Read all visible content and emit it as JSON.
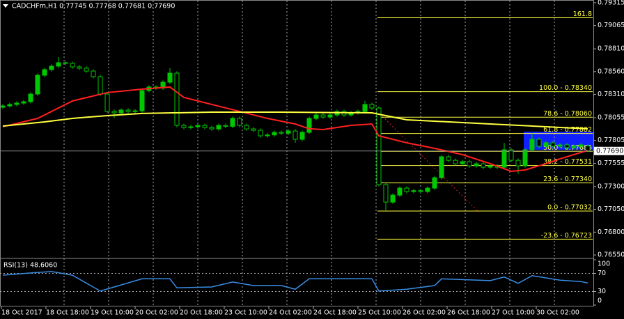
{
  "chart_data": {
    "type": "candlestick",
    "title": "CADCHFm,H1  0.77745 0.77768 0.77681 0.77690",
    "up_color": "#00c800",
    "down_color": "#00c800",
    "open": [
      0.7817,
      0.78184,
      0.782,
      0.78215,
      0.7823,
      0.78314,
      0.7852,
      0.78582,
      0.7862,
      0.78658,
      0.7865,
      0.78612,
      0.78597,
      0.78566,
      0.78505,
      0.78314,
      0.78123,
      0.78108,
      0.78138,
      0.78123,
      0.7813,
      0.78352,
      0.78391,
      0.7838,
      0.78444,
      0.78543,
      0.7797,
      0.77947,
      0.77955,
      0.7797,
      0.77947,
      0.77932,
      0.7797,
      0.7796,
      0.78047,
      0.7797,
      0.77932,
      0.77917,
      0.77856,
      0.77866,
      0.77894,
      0.77885,
      0.77909,
      0.77818,
      0.77894,
      0.78047,
      0.78085,
      0.78062,
      0.78085,
      0.78123,
      0.78085,
      0.78108,
      0.78123,
      0.782,
      0.78161,
      0.77321,
      0.7713,
      0.77206,
      0.77283,
      0.77245,
      0.77255,
      0.77245,
      0.77283,
      0.77397,
      0.77627,
      0.77588,
      0.7755,
      0.77573,
      0.77527,
      0.7755,
      0.77512,
      0.77527,
      0.77512,
      0.77703,
      0.77588,
      0.77527,
      0.77703,
      0.77818,
      0.77742,
      0.7778,
      0.77742,
      0.77757,
      0.77726,
      0.77742,
      0.77745
    ],
    "high": [
      0.78204,
      0.7822,
      0.78235,
      0.7825,
      0.78334,
      0.7854,
      0.78602,
      0.7864,
      0.7872,
      0.78678,
      0.7867,
      0.78632,
      0.78617,
      0.78586,
      0.78525,
      0.78334,
      0.78143,
      0.78158,
      0.78158,
      0.7815,
      0.78372,
      0.78411,
      0.78411,
      0.78464,
      0.786,
      0.78563,
      0.7799,
      0.77975,
      0.7799,
      0.7799,
      0.77967,
      0.7799,
      0.7799,
      0.78067,
      0.78067,
      0.7799,
      0.77952,
      0.77937,
      0.77886,
      0.77914,
      0.77914,
      0.77929,
      0.77929,
      0.77914,
      0.78067,
      0.78105,
      0.78105,
      0.78105,
      0.78143,
      0.78143,
      0.78128,
      0.78143,
      0.7824,
      0.7822,
      0.78181,
      0.77341,
      0.77226,
      0.77303,
      0.77303,
      0.77275,
      0.77275,
      0.77303,
      0.77417,
      0.77647,
      0.77647,
      0.77608,
      0.77593,
      0.77593,
      0.7757,
      0.7757,
      0.77547,
      0.77547,
      0.7778,
      0.77723,
      0.77608,
      0.77723,
      0.77882,
      0.77838,
      0.778,
      0.778,
      0.77777,
      0.77777,
      0.77762,
      0.77777,
      0.77768
    ],
    "low": [
      0.7815,
      0.78164,
      0.7818,
      0.78195,
      0.7821,
      0.78294,
      0.785,
      0.78562,
      0.786,
      0.7863,
      0.78592,
      0.78577,
      0.78546,
      0.78485,
      0.78294,
      0.78103,
      0.7805,
      0.78088,
      0.78103,
      0.78103,
      0.7811,
      0.78332,
      0.7836,
      0.7836,
      0.78424,
      0.7795,
      0.77927,
      0.77927,
      0.77935,
      0.77927,
      0.77912,
      0.77912,
      0.7794,
      0.7794,
      0.7795,
      0.77912,
      0.77897,
      0.77836,
      0.77836,
      0.77846,
      0.77865,
      0.77865,
      0.7778,
      0.77798,
      0.77874,
      0.78027,
      0.78042,
      0.78042,
      0.78065,
      0.78065,
      0.78065,
      0.78088,
      0.78103,
      0.78141,
      0.77301,
      0.77032,
      0.7711,
      0.77186,
      0.77225,
      0.77225,
      0.77225,
      0.77225,
      0.77263,
      0.77377,
      0.77568,
      0.7753,
      0.7753,
      0.77507,
      0.77507,
      0.77492,
      0.77492,
      0.77492,
      0.77492,
      0.77568,
      0.7744,
      0.77507,
      0.77683,
      0.77722,
      0.77722,
      0.77722,
      0.77722,
      0.77706,
      0.77706,
      0.77722,
      0.77681
    ],
    "close": [
      0.78184,
      0.782,
      0.78215,
      0.7823,
      0.78314,
      0.7852,
      0.78582,
      0.7862,
      0.78658,
      0.7865,
      0.78612,
      0.78597,
      0.78566,
      0.78505,
      0.78314,
      0.78123,
      0.78108,
      0.78138,
      0.78123,
      0.7813,
      0.78352,
      0.78391,
      0.7838,
      0.78444,
      0.78543,
      0.7797,
      0.77947,
      0.77955,
      0.7797,
      0.77947,
      0.77932,
      0.7797,
      0.7796,
      0.78047,
      0.7797,
      0.77932,
      0.77917,
      0.77856,
      0.77866,
      0.77894,
      0.77885,
      0.77909,
      0.77818,
      0.77894,
      0.78047,
      0.78085,
      0.78062,
      0.78085,
      0.78123,
      0.78085,
      0.78108,
      0.78123,
      0.782,
      0.78161,
      0.77321,
      0.7713,
      0.77206,
      0.77283,
      0.77245,
      0.77255,
      0.77245,
      0.77283,
      0.77397,
      0.77627,
      0.77588,
      0.7755,
      0.77573,
      0.77527,
      0.7755,
      0.77512,
      0.77527,
      0.77512,
      0.77703,
      0.77588,
      0.77527,
      0.77703,
      0.77818,
      0.77742,
      0.7778,
      0.77742,
      0.77757,
      0.77726,
      0.77742,
      0.77757,
      0.7769
    ],
    "moving_averages": [
      {
        "color": "#ff2020",
        "x": [
          0,
          5,
          10,
          15,
          20,
          24,
          26,
          30,
          34,
          38,
          42,
          44,
          46,
          50,
          53,
          54,
          58,
          62,
          66,
          70,
          73,
          75,
          78,
          80,
          84
        ],
        "values": [
          0.77956,
          0.78047,
          0.78238,
          0.7833,
          0.78368,
          0.78391,
          0.78277,
          0.782,
          0.78124,
          0.78047,
          0.77986,
          0.77933,
          0.77925,
          0.77971,
          0.77986,
          0.77856,
          0.7778,
          0.77719,
          0.7765,
          0.77551,
          0.77467,
          0.77482,
          0.77551,
          0.77604,
          0.77696
        ]
      },
      {
        "color": "#ffff40",
        "x": [
          0,
          6,
          10,
          15,
          20,
          30,
          40,
          53,
          58,
          70,
          80,
          84
        ],
        "values": [
          0.77963,
          0.78009,
          0.78047,
          0.78078,
          0.78101,
          0.78116,
          0.78116,
          0.78108,
          0.78032,
          0.77986,
          0.77948,
          0.77933
        ]
      }
    ],
    "fib_levels": [
      {
        "value": 0.7915,
        "label": "161.8"
      },
      {
        "value": 0.7834,
        "label": "100.0 - 0.78340"
      },
      {
        "value": 0.7806,
        "label": "78.6 - 0.78060"
      },
      {
        "value": 0.77882,
        "label": "61.8 - 0.77882"
      },
      {
        "value": 0.77686,
        "label": "50.0 - 0.77686"
      },
      {
        "value": 0.77531,
        "label": "38.2 - 0.77531"
      },
      {
        "value": 0.7734,
        "label": "23.6 - 0.77340"
      },
      {
        "value": 0.77032,
        "label": "0.0 - 0.77032"
      },
      {
        "value": 0.76723,
        "label": "-23.6 - 0.76723"
      }
    ],
    "fib_color": "#ffff40",
    "current_price": {
      "value": 0.7769,
      "label": "0.77690"
    },
    "ylim": [
      0.7652,
      0.79345
    ],
    "yticks": [
      0.79315,
      0.79065,
      {
        "value": 0.7881,
        "label": "0.78810"
      },
      {
        "value": 0.7856,
        "label": "0.78560"
      },
      {
        "value": 0.7831,
        "label": "0.78310"
      },
      0.78055,
      0.77805,
      0.77555,
      {
        "value": 0.773,
        "label": "0.77300"
      },
      {
        "value": 0.7705,
        "label": "0.77050"
      },
      {
        "value": 0.768,
        "label": "0.76800"
      },
      {
        "value": 0.7655,
        "label": "0.76550"
      }
    ],
    "time_labels": [
      "18 Oct 2017",
      "18 Oct 18:00",
      "19 Oct 10:00",
      "20 Oct 02:00",
      "20 Oct 18:00",
      "23 Oct 10:00",
      "24 Oct 02:00",
      "24 Oct 18:00",
      "25 Oct 10:00",
      "26 Oct 02:00",
      "26 Oct 18:00",
      "27 Oct 10:00",
      "30 Oct 02:00"
    ],
    "rsi": {
      "title": "RSI(13) 48.6060",
      "color": "#3a8ee6",
      "x": [
        0,
        4,
        7,
        10,
        14,
        16,
        20,
        24,
        25,
        30,
        33,
        36,
        40,
        42,
        44,
        50,
        53,
        54,
        58,
        62,
        63,
        70,
        72,
        74,
        76,
        80,
        83,
        84
      ],
      "values": [
        66,
        71,
        74,
        66,
        31,
        40,
        58,
        58,
        38,
        40,
        51,
        43,
        43,
        35,
        58,
        58,
        58,
        31,
        35,
        43,
        58,
        54,
        62,
        48,
        65,
        55,
        52,
        48.606
      ],
      "ylim": [
        0,
        100
      ],
      "yticks": [
        100,
        70,
        30,
        0
      ],
      "levels": [
        70,
        30
      ]
    }
  }
}
